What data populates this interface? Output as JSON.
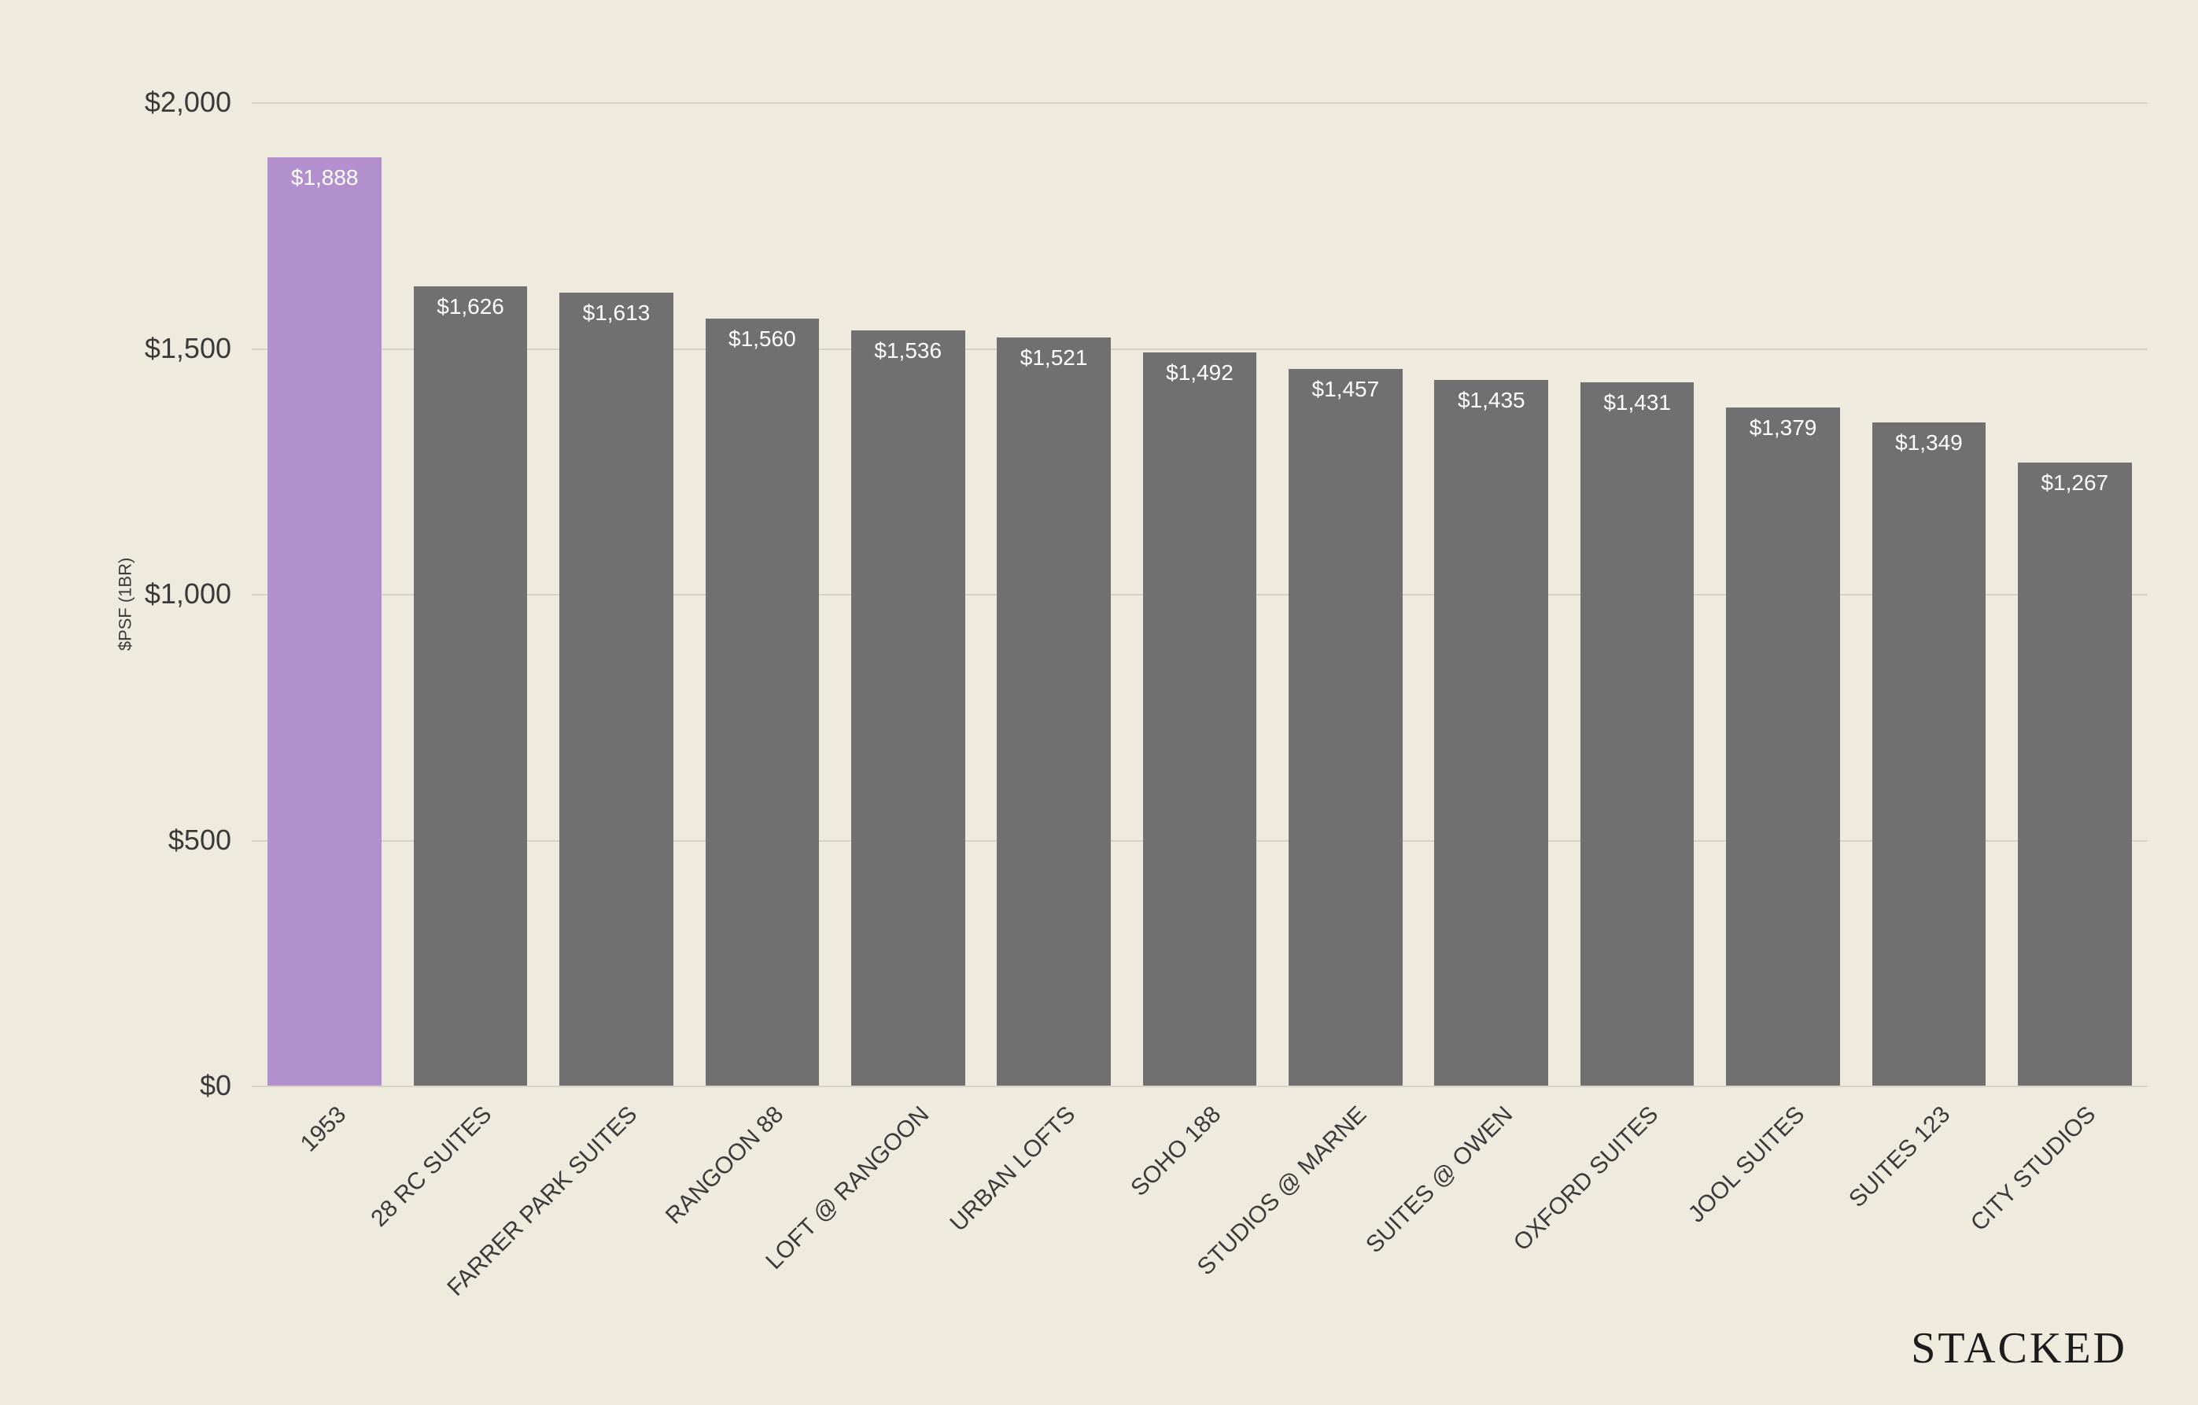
{
  "chart": {
    "type": "bar",
    "background_color": "#efeade",
    "grid_color": "#d6d2c6",
    "y_axis": {
      "label": "$PSF (1BR)",
      "label_fontsize": 22,
      "min": 0,
      "max": 2000,
      "ticks": [
        {
          "value": 0,
          "label": "$0"
        },
        {
          "value": 500,
          "label": "$500"
        },
        {
          "value": 1000,
          "label": "$1,000"
        },
        {
          "value": 1500,
          "label": "$1,500"
        },
        {
          "value": 2000,
          "label": "$2,000"
        }
      ],
      "tick_fontsize": 36,
      "tick_color": "#3a3a3a"
    },
    "bar_label_fontsize": 28,
    "bar_label_color": "#ffffff",
    "x_tick_fontsize": 30,
    "x_tick_color": "#3a3a3a",
    "x_tick_rotation_deg": -45,
    "bar_width_ratio": 0.78,
    "data": [
      {
        "category": "1953",
        "value": 1888,
        "label": "$1,888",
        "color": "#b28fcd"
      },
      {
        "category": "28 RC SUITES",
        "value": 1626,
        "label": "$1,626",
        "color": "#707070"
      },
      {
        "category": "FARRER PARK SUITES",
        "value": 1613,
        "label": "$1,613",
        "color": "#707070"
      },
      {
        "category": "RANGOON 88",
        "value": 1560,
        "label": "$1,560",
        "color": "#707070"
      },
      {
        "category": "LOFT @ RANGOON",
        "value": 1536,
        "label": "$1,536",
        "color": "#707070"
      },
      {
        "category": "URBAN LOFTS",
        "value": 1521,
        "label": "$1,521",
        "color": "#707070"
      },
      {
        "category": "SOHO 188",
        "value": 1492,
        "label": "$1,492",
        "color": "#707070"
      },
      {
        "category": "STUDIOS @ MARNE",
        "value": 1457,
        "label": "$1,457",
        "color": "#707070"
      },
      {
        "category": "SUITES @ OWEN",
        "value": 1435,
        "label": "$1,435",
        "color": "#707070"
      },
      {
        "category": "OXFORD SUITES",
        "value": 1431,
        "label": "$1,431",
        "color": "#707070"
      },
      {
        "category": "JOOL SUITES",
        "value": 1379,
        "label": "$1,379",
        "color": "#707070"
      },
      {
        "category": "SUITES 123",
        "value": 1349,
        "label": "$1,349",
        "color": "#707070"
      },
      {
        "category": "CITY STUDIOS",
        "value": 1267,
        "label": "$1,267",
        "color": "#707070"
      }
    ]
  },
  "brand": "STACKED"
}
